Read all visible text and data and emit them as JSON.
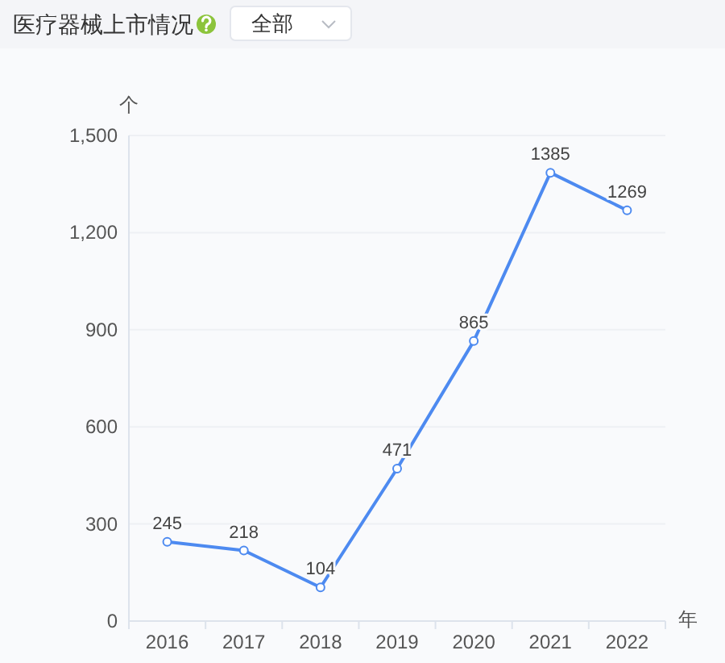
{
  "chart_data": {
    "type": "line",
    "title": "医疗器械上市情况",
    "annotations": [
      "全部"
    ],
    "xlabel": "年",
    "ylabel": "个",
    "categories": [
      "2016",
      "2017",
      "2018",
      "2019",
      "2020",
      "2021",
      "2022"
    ],
    "series": [
      {
        "color": "#4d8af0",
        "values": [
          245,
          218,
          104,
          471,
          865,
          1385,
          1269
        ]
      }
    ],
    "ylim": [
      0,
      1500
    ],
    "yticks": [
      0,
      300,
      600,
      900,
      {
        "value": 1200,
        "label": "1,200"
      },
      {
        "value": 1500,
        "label": "1,500"
      }
    ],
    "grid": "y",
    "marker": "circle",
    "data_labels": true
  }
}
